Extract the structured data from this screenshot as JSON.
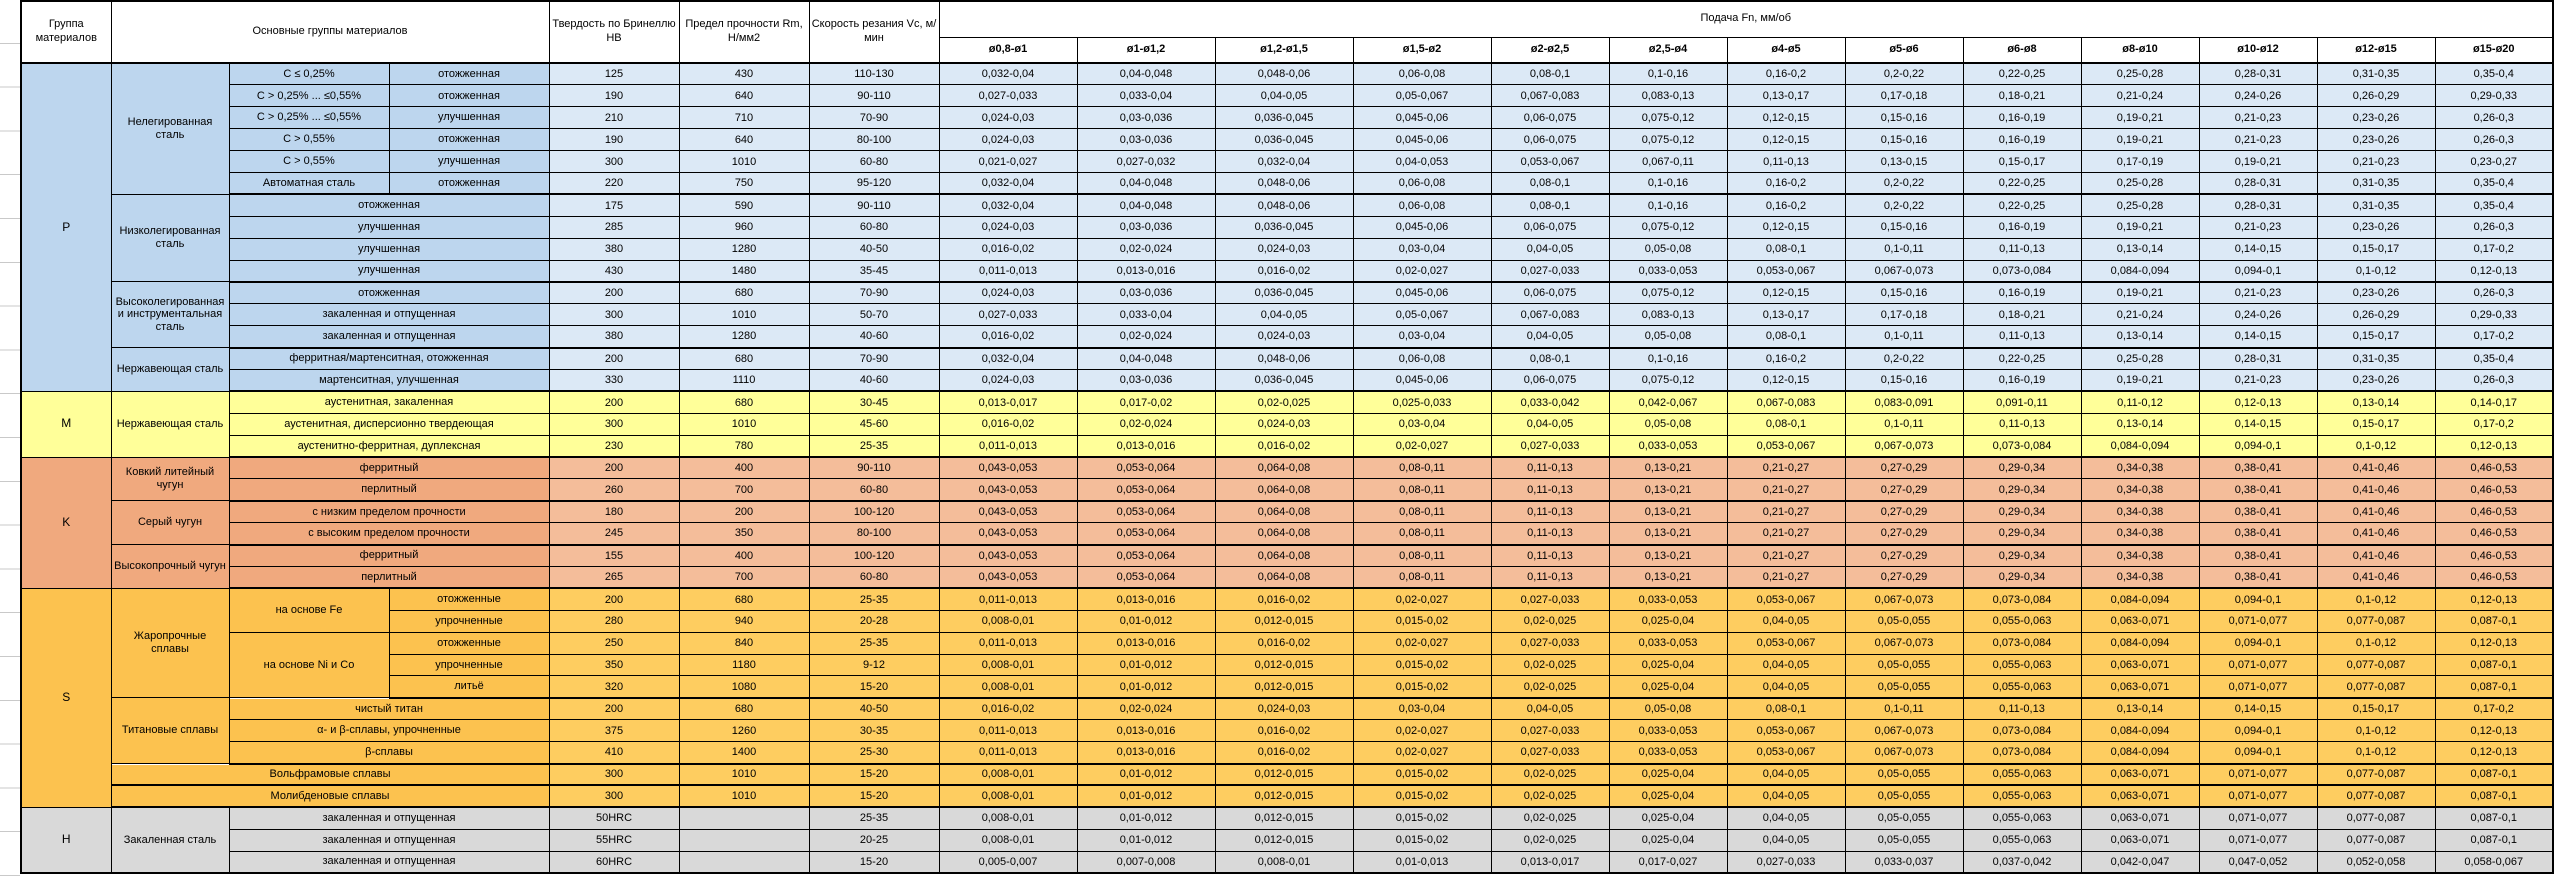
{
  "header": {
    "col_group": "Группа материалов",
    "col_main": "Основные группы материалов",
    "col_hb": "Твердость по Бринеллю HB",
    "col_rm": "Предел прочности Rm, Н/мм2",
    "col_vc": "Скорость резания Vc, м/мин",
    "col_feed": "Подача Fn, мм/об",
    "feed_cols": [
      "ø0,8-ø1",
      "ø1-ø1,2",
      "ø1,2-ø1,5",
      "ø1,5-ø2",
      "ø2-ø2,5",
      "ø2,5-ø4",
      "ø4-ø5",
      "ø5-ø6",
      "ø6-ø8",
      "ø8-ø10",
      "ø10-ø12",
      "ø12-ø15",
      "ø15-ø20"
    ]
  },
  "colors": {
    "border": "#000000",
    "header_bg": "#FFFFFF",
    "P": {
      "label": "#BDD6EE",
      "data": "#DCE9F6"
    },
    "M": {
      "label": "#FFFF99",
      "data": "#FFFF99"
    },
    "K": {
      "label": "#F0A97E",
      "data": "#F4BD9A"
    },
    "S": {
      "label": "#FCC24F",
      "data": "#FECD60"
    },
    "H": {
      "label": "#D9D9D9",
      "data": "#D9D9D9"
    }
  },
  "feed_patterns": {
    "A": [
      "0,032-0,04",
      "0,04-0,048",
      "0,048-0,06",
      "0,06-0,08",
      "0,08-0,1",
      "0,1-0,16",
      "0,16-0,2",
      "0,2-0,22",
      "0,22-0,25",
      "0,25-0,28",
      "0,28-0,31",
      "0,31-0,35",
      "0,35-0,4"
    ],
    "B": [
      "0,027-0,033",
      "0,033-0,04",
      "0,04-0,05",
      "0,05-0,067",
      "0,067-0,083",
      "0,083-0,13",
      "0,13-0,17",
      "0,17-0,18",
      "0,18-0,21",
      "0,21-0,24",
      "0,24-0,26",
      "0,26-0,29",
      "0,29-0,33"
    ],
    "C": [
      "0,024-0,03",
      "0,03-0,036",
      "0,036-0,045",
      "0,045-0,06",
      "0,06-0,075",
      "0,075-0,12",
      "0,12-0,15",
      "0,15-0,16",
      "0,16-0,19",
      "0,19-0,21",
      "0,21-0,23",
      "0,23-0,26",
      "0,26-0,3"
    ],
    "D": [
      "0,021-0,027",
      "0,027-0,032",
      "0,032-0,04",
      "0,04-0,053",
      "0,053-0,067",
      "0,067-0,11",
      "0,11-0,13",
      "0,13-0,15",
      "0,15-0,17",
      "0,17-0,19",
      "0,19-0,21",
      "0,21-0,23",
      "0,23-0,27"
    ],
    "E": [
      "0,016-0,02",
      "0,02-0,024",
      "0,024-0,03",
      "0,03-0,04",
      "0,04-0,05",
      "0,05-0,08",
      "0,08-0,1",
      "0,1-0,11",
      "0,11-0,13",
      "0,13-0,14",
      "0,14-0,15",
      "0,15-0,17",
      "0,17-0,2"
    ],
    "F": [
      "0,011-0,013",
      "0,013-0,016",
      "0,016-0,02",
      "0,02-0,027",
      "0,027-0,033",
      "0,033-0,053",
      "0,053-0,067",
      "0,067-0,073",
      "0,073-0,084",
      "0,084-0,094",
      "0,094-0,1",
      "0,1-0,12",
      "0,12-0,13"
    ],
    "G": [
      "0,013-0,017",
      "0,017-0,02",
      "0,02-0,025",
      "0,025-0,033",
      "0,033-0,042",
      "0,042-0,067",
      "0,067-0,083",
      "0,083-0,091",
      "0,091-0,11",
      "0,11-0,12",
      "0,12-0,13",
      "0,13-0,14",
      "0,14-0,17"
    ],
    "CI": [
      "0,043-0,053",
      "0,053-0,064",
      "0,064-0,08",
      "0,08-0,11",
      "0,11-0,13",
      "0,13-0,21",
      "0,21-0,27",
      "0,27-0,29",
      "0,29-0,34",
      "0,34-0,38",
      "0,38-0,41",
      "0,41-0,46",
      "0,46-0,53"
    ],
    "S2": [
      "0,008-0,01",
      "0,01-0,012",
      "0,012-0,015",
      "0,015-0,02",
      "0,02-0,025",
      "0,025-0,04",
      "0,04-0,05",
      "0,05-0,055",
      "0,055-0,063",
      "0,063-0,071",
      "0,071-0,077",
      "0,077-0,087",
      "0,087-0,1"
    ],
    "H60": [
      "0,005-0,007",
      "0,007-0,008",
      "0,008-0,01",
      "0,01-0,013",
      "0,013-0,017",
      "0,017-0,027",
      "0,027-0,033",
      "0,033-0,037",
      "0,037-0,042",
      "0,042-0,047",
      "0,047-0,052",
      "0,052-0,058",
      "0,058-0,067"
    ]
  },
  "rows": [
    {
      "g": "P",
      "cells": [
        [
          "P",
          15,
          "letter"
        ],
        [
          "Нелегированная сталь",
          6,
          "name"
        ],
        [
          "C ≤ 0,25%",
          1,
          "sub1"
        ],
        [
          "отожженная",
          1,
          "sub2"
        ]
      ],
      "hb": "125",
      "rm": "430",
      "vc": "110-130",
      "fp": "A"
    },
    {
      "g": "P",
      "cells": [
        [
          "C > 0,25% ... ≤0,55%",
          1,
          "sub1"
        ],
        [
          "отожженная",
          1,
          "sub2"
        ]
      ],
      "hb": "190",
      "rm": "640",
      "vc": "90-110",
      "fp": "B"
    },
    {
      "g": "P",
      "cells": [
        [
          "C > 0,25% ... ≤0,55%",
          1,
          "sub1"
        ],
        [
          "улучшенная",
          1,
          "sub2"
        ]
      ],
      "hb": "210",
      "rm": "710",
      "vc": "70-90",
      "fp": "C"
    },
    {
      "g": "P",
      "cells": [
        [
          "C > 0,55%",
          1,
          "sub1"
        ],
        [
          "отожженная",
          1,
          "sub2"
        ]
      ],
      "hb": "190",
      "rm": "640",
      "vc": "80-100",
      "fp": "C"
    },
    {
      "g": "P",
      "cells": [
        [
          "C > 0,55%",
          1,
          "sub1"
        ],
        [
          "улучшенная",
          1,
          "sub2"
        ]
      ],
      "hb": "300",
      "rm": "1010",
      "vc": "60-80",
      "fp": "D"
    },
    {
      "g": "P",
      "sep": true,
      "cells": [
        [
          "Автоматная сталь",
          1,
          "sub1"
        ],
        [
          "отожженная",
          1,
          "sub2"
        ]
      ],
      "hb": "220",
      "rm": "750",
      "vc": "95-120",
      "fp": "A"
    },
    {
      "g": "P",
      "cells": [
        [
          "Низколегированная сталь",
          4,
          "name"
        ],
        [
          "отожженная",
          1,
          "sub12"
        ]
      ],
      "hb": "175",
      "rm": "590",
      "vc": "90-110",
      "fp": "A"
    },
    {
      "g": "P",
      "cells": [
        [
          "улучшенная",
          1,
          "sub12"
        ]
      ],
      "hb": "285",
      "rm": "960",
      "vc": "60-80",
      "fp": "C"
    },
    {
      "g": "P",
      "cells": [
        [
          "улучшенная",
          1,
          "sub12"
        ]
      ],
      "hb": "380",
      "rm": "1280",
      "vc": "40-50",
      "fp": "E"
    },
    {
      "g": "P",
      "sep": true,
      "cells": [
        [
          "улучшенная",
          1,
          "sub12"
        ]
      ],
      "hb": "430",
      "rm": "1480",
      "vc": "35-45",
      "fp": "F"
    },
    {
      "g": "P",
      "cells": [
        [
          "Высоколегированная и инструментальная сталь",
          3,
          "name"
        ],
        [
          "отожженная",
          1,
          "sub12"
        ]
      ],
      "hb": "200",
      "rm": "680",
      "vc": "70-90",
      "fp": "C"
    },
    {
      "g": "P",
      "cells": [
        [
          "закаленная и отпущенная",
          1,
          "sub12"
        ]
      ],
      "hb": "300",
      "rm": "1010",
      "vc": "50-70",
      "fp": "B"
    },
    {
      "g": "P",
      "sep": true,
      "cells": [
        [
          "закаленная и отпущенная",
          1,
          "sub12"
        ]
      ],
      "hb": "380",
      "rm": "1280",
      "vc": "40-60",
      "fp": "E"
    },
    {
      "g": "P",
      "cells": [
        [
          "Нержавеющая сталь",
          2,
          "name"
        ],
        [
          "ферритная/мартенситная, отожженная",
          1,
          "sub12"
        ]
      ],
      "hb": "200",
      "rm": "680",
      "vc": "70-90",
      "fp": "A"
    },
    {
      "g": "P",
      "sep": true,
      "cells": [
        [
          "мартенситная, улучшенная",
          1,
          "sub12"
        ]
      ],
      "hb": "330",
      "rm": "1110",
      "vc": "40-60",
      "fp": "C"
    },
    {
      "g": "M",
      "cells": [
        [
          "M",
          3,
          "letter"
        ],
        [
          "Нержавеющая сталь",
          3,
          "name"
        ],
        [
          "аустенитная, закаленная",
          1,
          "sub12"
        ]
      ],
      "hb": "200",
      "rm": "680",
      "vc": "30-45",
      "fp": "G"
    },
    {
      "g": "M",
      "cells": [
        [
          "аустенитная, дисперсионно твердеющая",
          1,
          "sub12"
        ]
      ],
      "hb": "300",
      "rm": "1010",
      "vc": "45-60",
      "fp": "E"
    },
    {
      "g": "M",
      "sep": true,
      "cells": [
        [
          "аустенитно-ферритная, дуплексная",
          1,
          "sub12"
        ]
      ],
      "hb": "230",
      "rm": "780",
      "vc": "25-35",
      "fp": "F"
    },
    {
      "g": "K",
      "cells": [
        [
          "K",
          6,
          "letter"
        ],
        [
          "Ковкий литейный чугун",
          2,
          "name"
        ],
        [
          "ферритный",
          1,
          "sub12"
        ]
      ],
      "hb": "200",
      "rm": "400",
      "vc": "90-110",
      "fp": "CI"
    },
    {
      "g": "K",
      "sep": true,
      "cells": [
        [
          "перлитный",
          1,
          "sub12"
        ]
      ],
      "hb": "260",
      "rm": "700",
      "vc": "60-80",
      "fp": "CI"
    },
    {
      "g": "K",
      "cells": [
        [
          "Серый чугун",
          2,
          "name"
        ],
        [
          "с низким пределом прочности",
          1,
          "sub12"
        ]
      ],
      "hb": "180",
      "rm": "200",
      "vc": "100-120",
      "fp": "CI"
    },
    {
      "g": "K",
      "sep": true,
      "cells": [
        [
          "с высоким пределом прочности",
          1,
          "sub12"
        ]
      ],
      "hb": "245",
      "rm": "350",
      "vc": "80-100",
      "fp": "CI"
    },
    {
      "g": "K",
      "cells": [
        [
          "Высокопрочный чугун",
          2,
          "name"
        ],
        [
          "ферритный",
          1,
          "sub12"
        ]
      ],
      "hb": "155",
      "rm": "400",
      "vc": "100-120",
      "fp": "CI"
    },
    {
      "g": "K",
      "sep": true,
      "cells": [
        [
          "перлитный",
          1,
          "sub12"
        ]
      ],
      "hb": "265",
      "rm": "700",
      "vc": "60-80",
      "fp": "CI"
    },
    {
      "g": "S",
      "cells": [
        [
          "S",
          10,
          "letter"
        ],
        [
          "Жаропрочные сплавы",
          5,
          "name"
        ],
        [
          "на основе Fe",
          2,
          "sub1"
        ],
        [
          "отожженные",
          1,
          "sub2"
        ]
      ],
      "hb": "200",
      "rm": "680",
      "vc": "25-35",
      "fp": "F"
    },
    {
      "g": "S",
      "cells": [
        [
          "упрочненные",
          1,
          "sub2"
        ]
      ],
      "hb": "280",
      "rm": "940",
      "vc": "20-28",
      "fp": "S2"
    },
    {
      "g": "S",
      "cells": [
        [
          "на основе Ni и Co",
          3,
          "sub1"
        ],
        [
          "отожженные",
          1,
          "sub2"
        ]
      ],
      "hb": "250",
      "rm": "840",
      "vc": "25-35",
      "fp": "F"
    },
    {
      "g": "S",
      "cells": [
        [
          "упрочненные",
          1,
          "sub2"
        ]
      ],
      "hb": "350",
      "rm": "1180",
      "vc": "9-12",
      "fp": "S2"
    },
    {
      "g": "S",
      "sep": true,
      "cells": [
        [
          "литьё",
          1,
          "sub2"
        ]
      ],
      "hb": "320",
      "rm": "1080",
      "vc": "15-20",
      "fp": "S2"
    },
    {
      "g": "S",
      "cells": [
        [
          "Титановые сплавы",
          3,
          "name"
        ],
        [
          "чистый титан",
          1,
          "sub12"
        ]
      ],
      "hb": "200",
      "rm": "680",
      "vc": "40-50",
      "fp": "E"
    },
    {
      "g": "S",
      "cells": [
        [
          "α- и β-сплавы, упрочненные",
          1,
          "sub12"
        ]
      ],
      "hb": "375",
      "rm": "1260",
      "vc": "30-35",
      "fp": "F"
    },
    {
      "g": "S",
      "sep": true,
      "cells": [
        [
          "β-сплавы",
          1,
          "sub12"
        ]
      ],
      "hb": "410",
      "rm": "1400",
      "vc": "25-30",
      "fp": "F"
    },
    {
      "g": "S",
      "sep": true,
      "cells": [
        [
          "Вольфрамовые сплавы",
          1,
          "name3"
        ]
      ],
      "hb": "300",
      "rm": "1010",
      "vc": "15-20",
      "fp": "S2"
    },
    {
      "g": "S",
      "sep": true,
      "cells": [
        [
          "Молибденовые сплавы",
          1,
          "name3"
        ]
      ],
      "hb": "300",
      "rm": "1010",
      "vc": "15-20",
      "fp": "S2"
    },
    {
      "g": "H",
      "cells": [
        [
          "H",
          3,
          "letter"
        ],
        [
          "Закаленная сталь",
          3,
          "name"
        ],
        [
          "закаленная и отпущенная",
          1,
          "sub12"
        ]
      ],
      "hb": "50HRC",
      "rm": "",
      "vc": "25-35",
      "fp": "S2"
    },
    {
      "g": "H",
      "cells": [
        [
          "закаленная и отпущенная",
          1,
          "sub12"
        ]
      ],
      "hb": "55HRC",
      "rm": "",
      "vc": "20-25",
      "fp": "S2"
    },
    {
      "g": "H",
      "cells": [
        [
          "закаленная и отпущенная",
          1,
          "sub12"
        ]
      ],
      "hb": "60HRC",
      "rm": "",
      "vc": "15-20",
      "fp": "H60"
    }
  ]
}
